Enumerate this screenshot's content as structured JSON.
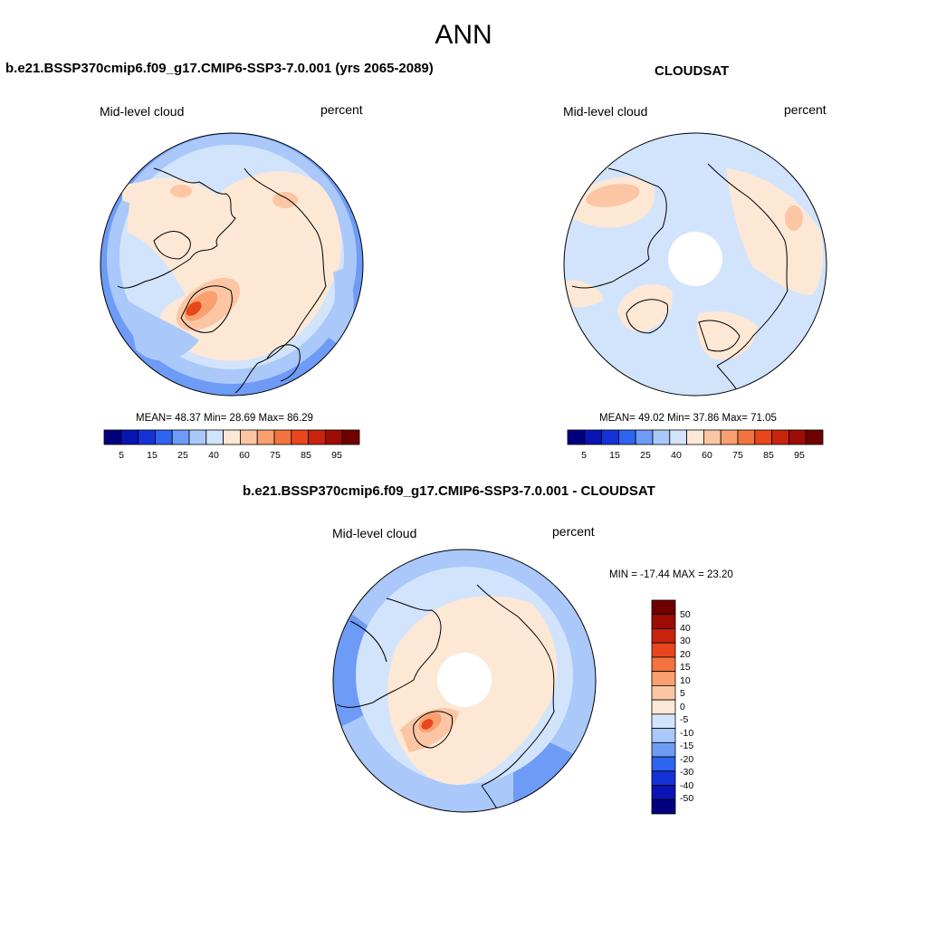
{
  "page_title": "ANN",
  "colors": {
    "sequential": [
      "#00007f",
      "#0a14b4",
      "#1432d8",
      "#2d64f0",
      "#6e9bf5",
      "#aac8fa",
      "#d2e4fc",
      "#fde8d6",
      "#fcc6a4",
      "#f9a06e",
      "#f3743e",
      "#e8461c",
      "#c8230c",
      "#9e0c05",
      "#700000"
    ],
    "diff": [
      "#700000",
      "#9e0c05",
      "#c8230c",
      "#e8461c",
      "#f3743e",
      "#f9a06e",
      "#fcc6a4",
      "#fde8d6",
      "#d2e4fc",
      "#aac8fa",
      "#6e9bf5",
      "#2d64f0",
      "#1432d8",
      "#0a14b4",
      "#00007f"
    ]
  },
  "panels": {
    "model": {
      "title": "b.e21.BSSP370cmip6.f09_g17.CMIP6-SSP3-7.0.001 (yrs 2065-2089)",
      "variable": "Mid-level cloud",
      "units": "percent",
      "stats": "MEAN=  48.37  Min=  28.69  Max=  86.29"
    },
    "obs": {
      "title": "CLOUDSAT",
      "variable": "Mid-level cloud",
      "units": "percent",
      "stats": "MEAN=  49.02  Min=  37.86  Max=  71.05"
    },
    "diff": {
      "title": "b.e21.BSSP370cmip6.f09_g17.CMIP6-SSP3-7.0.001 - CLOUDSAT",
      "variable": "Mid-level cloud",
      "units": "percent",
      "stats": "MIN = -17.44 MAX =  23.20"
    }
  },
  "colorbar_ticks": [
    "5",
    "15",
    "25",
    "40",
    "60",
    "75",
    "85",
    "95"
  ],
  "diff_colorbar_ticks": [
    "50",
    "40",
    "30",
    "20",
    "15",
    "10",
    "5",
    "0",
    "-5",
    "-10",
    "-15",
    "-20",
    "-30",
    "-40",
    "-50"
  ]
}
